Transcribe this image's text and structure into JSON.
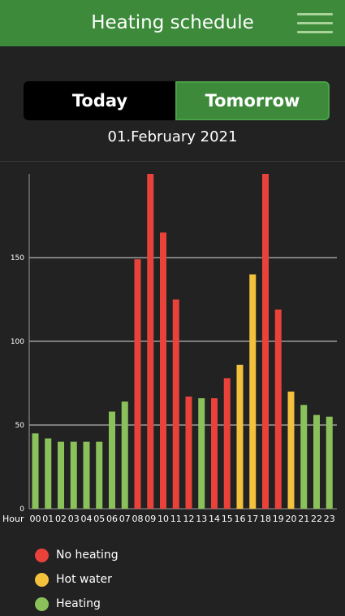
{
  "header": {
    "title": "Heating schedule"
  },
  "tabs": [
    {
      "label": "Today",
      "active": false
    },
    {
      "label": "Tomorrow",
      "active": true
    }
  ],
  "date": "01.February 2021",
  "colors": {
    "no_heating": "#e8423a",
    "hot_water": "#f4c13c",
    "heating": "#8bc15a",
    "accent": "#3c8a3a"
  },
  "chart_data": {
    "type": "bar",
    "x_prefix_label": "Hour",
    "categories": [
      "00",
      "01",
      "02",
      "03",
      "04",
      "05",
      "06",
      "07",
      "08",
      "09",
      "10",
      "11",
      "12",
      "13",
      "14",
      "15",
      "16",
      "17",
      "18",
      "19",
      "20",
      "21",
      "22",
      "23"
    ],
    "values": [
      45,
      42,
      40,
      40,
      40,
      40,
      58,
      64,
      149,
      200,
      165,
      125,
      67,
      66,
      66,
      78,
      86,
      140,
      200,
      119,
      70,
      62,
      56,
      55
    ],
    "mode": [
      "heating",
      "heating",
      "heating",
      "heating",
      "heating",
      "heating",
      "heating",
      "heating",
      "no_heating",
      "no_heating",
      "no_heating",
      "no_heating",
      "no_heating",
      "heating",
      "no_heating",
      "no_heating",
      "hot_water",
      "hot_water",
      "no_heating",
      "no_heating",
      "hot_water",
      "heating",
      "heating",
      "heating"
    ],
    "yticks": [
      0,
      50,
      100,
      150
    ],
    "ylim": [
      0,
      200
    ],
    "grid": true,
    "legend_position": "bottom-left",
    "legend": [
      {
        "key": "no_heating",
        "label": "No heating"
      },
      {
        "key": "hot_water",
        "label": "Hot water"
      },
      {
        "key": "heating",
        "label": "Heating"
      }
    ]
  }
}
